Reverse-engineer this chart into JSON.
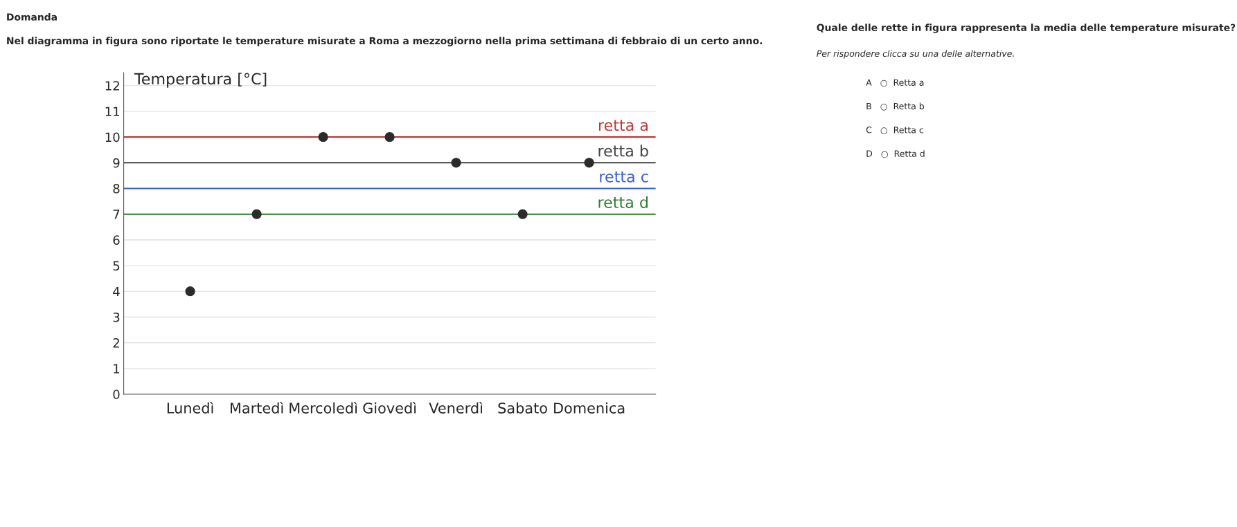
{
  "chart_data": {
    "type": "scatter",
    "title": "Domanda",
    "subtitle": "Nel diagramma in figura sono riportate le temperature misurate a Roma a mezzogiorno nella prima settimana di febbraio di un certo anno.",
    "ylabel": "Temperatura [°C]",
    "categories": [
      "Lunedì",
      "Martedì",
      "Mercoledì",
      "Giovedì",
      "Venerdì",
      "Sabato",
      "Domenica"
    ],
    "series": [
      {
        "color": "#2b2b2b",
        "values": [
          4,
          7,
          10,
          10,
          9,
          7,
          9
        ]
      }
    ],
    "marker": "circle",
    "ylim": [
      0,
      12.5
    ],
    "yticks": [
      0,
      1,
      2,
      3,
      4,
      5,
      6,
      7,
      8,
      9,
      10,
      11,
      12
    ],
    "grid": "y",
    "ref_lines": [
      {
        "axis": "y",
        "value": 10,
        "label": "retta a",
        "color": "#c0393b"
      },
      {
        "axis": "y",
        "value": 9,
        "label": "retta b",
        "color": "#444444"
      },
      {
        "axis": "y",
        "value": 8,
        "label": "retta c",
        "color": "#3a5fcd"
      },
      {
        "axis": "y",
        "value": 7,
        "label": "retta d",
        "color": "#2e7d32"
      }
    ],
    "annotations": [
      "Quale delle rette in figura rappresenta la media delle temperature misurate?",
      "Per rispondere clicca su una delle alternative.",
      "A   ○  Retta a",
      "B   ○  Retta b",
      "C   ○  Retta c",
      "D   ○  Retta d"
    ]
  }
}
